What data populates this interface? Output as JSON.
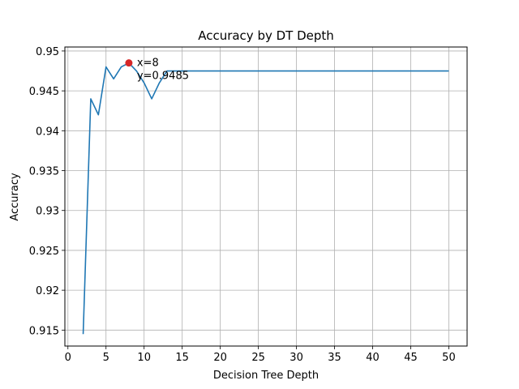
{
  "chart_data": {
    "type": "line",
    "title": "Accuracy by DT Depth",
    "xlabel": "Decision Tree Depth",
    "ylabel": "Accuracy",
    "xlim": [
      -0.4,
      52.4
    ],
    "ylim": [
      0.913,
      0.9505
    ],
    "xticks": [
      0,
      5,
      10,
      15,
      20,
      25,
      30,
      35,
      40,
      45,
      50
    ],
    "yticks": [
      0.915,
      0.92,
      0.925,
      0.93,
      0.935,
      0.94,
      0.945,
      0.95
    ],
    "ytick_labels": [
      "0.915",
      "0.92",
      "0.925",
      "0.93",
      "0.935",
      "0.94",
      "0.945",
      "0.95"
    ],
    "grid": true,
    "line_color": "#1f77b4",
    "series": [
      {
        "x": [
          2,
          3,
          4,
          5,
          6,
          7,
          8,
          9,
          10,
          11,
          12,
          13,
          14,
          15,
          16,
          17,
          18,
          19,
          20,
          21,
          22,
          23,
          24,
          25,
          26,
          27,
          28,
          29,
          30,
          31,
          32,
          33,
          34,
          35,
          36,
          37,
          38,
          39,
          40,
          41,
          42,
          43,
          44,
          45,
          46,
          47,
          48,
          49,
          50
        ],
        "values": [
          0.9145,
          0.944,
          0.942,
          0.948,
          0.9465,
          0.948,
          0.9485,
          0.9475,
          0.946,
          0.944,
          0.946,
          0.9475,
          0.9475,
          0.9475,
          0.9475,
          0.9475,
          0.9475,
          0.9475,
          0.9475,
          0.9475,
          0.9475,
          0.9475,
          0.9475,
          0.9475,
          0.9475,
          0.9475,
          0.9475,
          0.9475,
          0.9475,
          0.9475,
          0.9475,
          0.9475,
          0.9475,
          0.9475,
          0.9475,
          0.9475,
          0.9475,
          0.9475,
          0.9475,
          0.9475,
          0.9475,
          0.9475,
          0.9475,
          0.9475,
          0.9475,
          0.9475,
          0.9475,
          0.9475,
          0.9475
        ]
      }
    ],
    "highlight": {
      "x": 8,
      "y": 0.9485,
      "color": "#d62728",
      "label_x": "x=8",
      "label_y": "y=0.9485"
    }
  }
}
